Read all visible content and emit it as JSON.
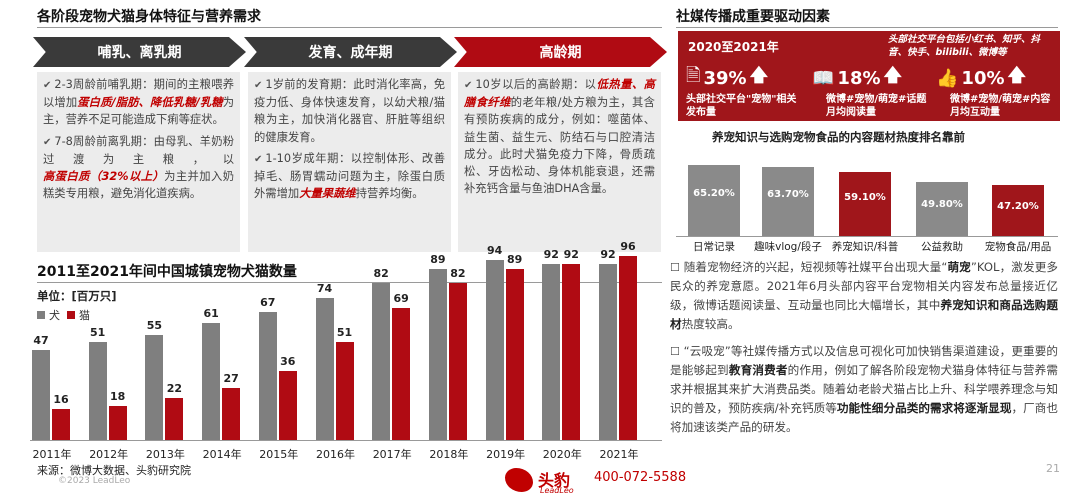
{
  "left_title": "各阶段宠物犬猫身体特征与营养需求",
  "stages": [
    {
      "label": "哺乳、离乳期",
      "color": "#3a3a3a",
      "paras": [
        {
          "pre": "2-3周龄前哺乳期：期间的主粮喂养以增加",
          "hl": "蛋白质/脂肪、降低乳糖/乳糖",
          "post": "为主，营养不足可能造成下痢等症状。"
        },
        {
          "pre": "7-8周龄前离乳期：由母乳、羊奶粉过渡为主粮，以",
          "hl": "高蛋白质（32%以上）",
          "post": "为主并加入奶糕类专用粮，避免消化道疾病。"
        }
      ]
    },
    {
      "label": "发育、成年期",
      "color": "#3a3a3a",
      "paras": [
        {
          "pre": "1岁前的发育期：此时消化率高，免疫力低、身体快速发育，以幼犬粮/猫粮为主，加快消化器官、肝脏等组织的健康发育。",
          "hl": "",
          "post": ""
        },
        {
          "pre": "1-10岁成年期：以控制体形、改善掉毛、肠胃蠕动问题为主，除蛋白质外需增加",
          "hl": "大量果蔬维",
          "post": "持营养均衡。"
        }
      ]
    },
    {
      "label": "高龄期",
      "color": "#b00b13",
      "paras": [
        {
          "pre": "10岁以后的高龄期：以",
          "hl": "低热量、高膳食纤维",
          "post": "的老年粮/处方粮为主，其含有预防疾病的成分，例如：噬菌体、益生菌、益生元、防结石与口腔清洁成分。此时犬猫免疫力下降，骨质疏松、牙齿松动、身体机能衰退，还需补充钙含量与鱼油DHA含量。"
        }
      ]
    }
  ],
  "pop_chart": {
    "title": "2011至2021年间中国城镇宠物犬猫数量",
    "unit": "单位：[百万只]",
    "legend": [
      "犬",
      "猫"
    ],
    "source": "来源：微博大数据、头豹研究院",
    "copyright": "©2023 LeadLeo"
  },
  "chart_data": [
    {
      "type": "bar",
      "title": "2011至2021年间中国城镇宠物犬猫数量",
      "ylabel": "单位：[百万只]",
      "categories": [
        "2011年",
        "2012年",
        "2013年",
        "2014年",
        "2015年",
        "2016年",
        "2017年",
        "2018年",
        "2019年",
        "2020年",
        "2021年"
      ],
      "series": [
        {
          "name": "犬",
          "color": "#7f7f7f",
          "values": [
            47,
            51,
            55,
            61,
            67,
            74,
            82,
            89,
            94,
            92,
            92
          ]
        },
        {
          "name": "猫",
          "color": "#b00b13",
          "values": [
            16,
            18,
            22,
            27,
            36,
            51,
            69,
            82,
            89,
            92,
            96
          ]
        }
      ]
    },
    {
      "type": "bar",
      "title": "养宠知识与选购宠物食品的内容题材热度排名靠前",
      "categories": [
        "日常记录",
        "趣味vlog/段子",
        "养宠知识/科普",
        "公益救助",
        "宠物食品/用品"
      ],
      "values": [
        65.2,
        63.7,
        59.1,
        49.8,
        47.2
      ],
      "labels": [
        "65.20%",
        "63.70%",
        "59.10%",
        "49.80%",
        "47.20%"
      ],
      "colors": [
        "#8a8a8a",
        "#8a8a8a",
        "#a0161b",
        "#8a8a8a",
        "#a0161b"
      ]
    }
  ],
  "right_title": "社媒传播成重要驱动因素",
  "social_box": {
    "period": "2020至2021年",
    "note": "头部社交平台包括小红书、知乎、抖音、快手、bilibili、微博等",
    "stats": [
      {
        "value": "39%",
        "desc": "头部社交平台\"宠物\"相关发布量"
      },
      {
        "value": "18%",
        "desc": "微博#宠物/萌宠#话题月均阅读量"
      },
      {
        "value": "10%",
        "desc": "微博#宠物/萌宠#内容月均互动量"
      }
    ]
  },
  "heat_chart_title": "养宠知识与选购宠物食品的内容题材热度排名靠前",
  "para1": {
    "pre": "随着宠物经济的兴起，短视频等社媒平台出现大量“",
    "b1": "萌宠",
    "mid": "”KOL，激发更多民众的养宠意愿。2021年6月头部内容平台宠物相关内容发布总量接近亿级，微博话题阅读量、互动量也同比大幅增长，其中",
    "b2": "养宠知识和商品选购题材",
    "post": "热度较高。"
  },
  "para2": {
    "pre": "“云吸宠”等社媒传播方式以及信息可视化可加快销售渠道建设，更重要的是能够起到",
    "b1": "教育消费者",
    "mid": "的作用，例如了解各阶段宠物犬猫身体特征与营养需求并根据其来扩大消费品类。随着幼老龄犬猫占比上升、科学喂养理念与知识的普及，预防疾病/补充钙质等",
    "b2": "功能性细分品类的需求将逐渐显现",
    "post": "，厂商也将加速该类产品的研发。"
  },
  "footer": {
    "brand": "头豹",
    "brand_en": "LeadLeo",
    "phone": "400-072-5588",
    "page": "21"
  }
}
